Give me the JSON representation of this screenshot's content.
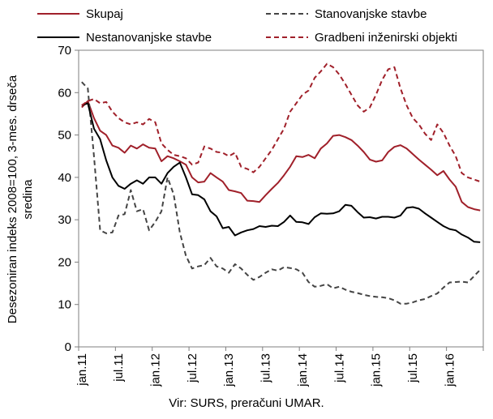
{
  "chart_data": {
    "type": "line",
    "ylabel_line1": "Desezoniran indeks 2008=100, 3-mes. drseča",
    "ylabel_line2": "sredina",
    "source": "Vir: SURS, preračuni UMAR.",
    "ylim": [
      0,
      70
    ],
    "yticks": [
      0,
      10,
      20,
      30,
      40,
      50,
      60,
      70
    ],
    "xticks": [
      {
        "index": 0,
        "label": "jan.11"
      },
      {
        "index": 6,
        "label": "jul.11"
      },
      {
        "index": 12,
        "label": "jan.12"
      },
      {
        "index": 18,
        "label": "jul.12"
      },
      {
        "index": 24,
        "label": "jan.13"
      },
      {
        "index": 30,
        "label": "jul.13"
      },
      {
        "index": 36,
        "label": "jan.14"
      },
      {
        "index": 42,
        "label": "jul.14"
      },
      {
        "index": 48,
        "label": "jan.15"
      },
      {
        "index": 54,
        "label": "jul.15"
      },
      {
        "index": 60,
        "label": "jan.16"
      }
    ],
    "x_count": 66,
    "legend_position": "top",
    "series": [
      {
        "name": "Skupaj",
        "color": "#a0202a",
        "dashed": false,
        "values": [
          56.5,
          58.0,
          54.0,
          51.0,
          50.0,
          47.5,
          47.0,
          45.8,
          47.5,
          46.8,
          47.8,
          47.0,
          46.8,
          43.8,
          45.0,
          44.5,
          43.8,
          43.0,
          40.0,
          38.8,
          39.0,
          41.0,
          40.0,
          39.0,
          37.0,
          36.7,
          36.3,
          34.5,
          34.4,
          34.2,
          35.8,
          37.3,
          38.7,
          40.5,
          42.5,
          45.0,
          44.8,
          45.3,
          44.5,
          46.8,
          48.0,
          49.8,
          50.0,
          49.5,
          48.8,
          47.5,
          46.0,
          44.2,
          43.7,
          44.0,
          46.0,
          47.2,
          47.6,
          46.8,
          45.5,
          44.2,
          43.0,
          41.8,
          40.5,
          41.5,
          39.5,
          37.8,
          34.2,
          33.0,
          32.5,
          32.2
        ]
      },
      {
        "name": "Stanovanjske stavbe",
        "color": "#444444",
        "dashed": true,
        "values": [
          62.5,
          61.0,
          45.0,
          27.5,
          26.8,
          27.0,
          31.0,
          31.3,
          37.0,
          32.0,
          32.5,
          27.5,
          29.5,
          32.0,
          40.0,
          36.0,
          27.0,
          21.5,
          18.5,
          19.0,
          19.3,
          21.0,
          19.0,
          18.5,
          17.5,
          19.5,
          18.5,
          17.0,
          15.8,
          16.5,
          17.5,
          18.3,
          18.0,
          18.8,
          18.6,
          18.3,
          17.5,
          15.3,
          14.2,
          14.4,
          14.8,
          13.8,
          14.2,
          13.5,
          13.0,
          12.7,
          12.3,
          12.0,
          11.8,
          11.7,
          11.5,
          11.0,
          10.2,
          10.2,
          10.5,
          11.0,
          11.3,
          12.0,
          12.6,
          14.0,
          15.2,
          15.3,
          15.4,
          15.2,
          16.7,
          18.2
        ]
      },
      {
        "name": "Nestanovanjske stavbe",
        "color": "#000000",
        "dashed": false,
        "values": [
          57.0,
          57.5,
          51.5,
          49.0,
          44.0,
          40.0,
          38.0,
          37.3,
          38.5,
          39.3,
          38.5,
          40.0,
          40.0,
          38.5,
          41.0,
          42.5,
          43.5,
          40.0,
          36.0,
          35.8,
          34.8,
          32.0,
          30.8,
          28.0,
          28.3,
          26.3,
          27.0,
          27.5,
          27.8,
          28.5,
          28.3,
          28.6,
          28.5,
          29.5,
          31.0,
          29.5,
          29.4,
          29.0,
          30.6,
          31.5,
          31.4,
          31.5,
          32.0,
          33.5,
          33.3,
          31.8,
          30.5,
          30.6,
          30.3,
          30.7,
          30.7,
          30.5,
          31.0,
          32.8,
          33.0,
          32.6,
          31.5,
          30.5,
          29.5,
          28.5,
          27.8,
          27.5,
          26.5,
          25.8,
          24.8,
          24.7
        ]
      },
      {
        "name": "Gradbeni inženirski objekti",
        "color": "#a0202a",
        "dashed": true,
        "values": [
          57.0,
          58.0,
          58.5,
          57.5,
          57.8,
          55.5,
          54.0,
          53.0,
          52.5,
          53.0,
          52.5,
          53.8,
          53.0,
          48.0,
          46.5,
          45.3,
          45.0,
          44.5,
          43.0,
          43.5,
          47.3,
          46.8,
          46.0,
          45.8,
          45.0,
          45.8,
          42.5,
          42.0,
          41.2,
          42.5,
          44.5,
          46.5,
          49.0,
          51.5,
          55.5,
          57.5,
          59.5,
          60.5,
          63.5,
          65.0,
          66.8,
          66.0,
          64.3,
          62.0,
          59.5,
          57.0,
          55.5,
          56.5,
          59.5,
          63.0,
          65.5,
          66.0,
          61.0,
          57.0,
          54.0,
          52.5,
          50.3,
          48.8,
          52.5,
          50.5,
          47.5,
          45.0,
          41.0,
          40.0,
          39.5,
          39.0
        ]
      }
    ]
  }
}
